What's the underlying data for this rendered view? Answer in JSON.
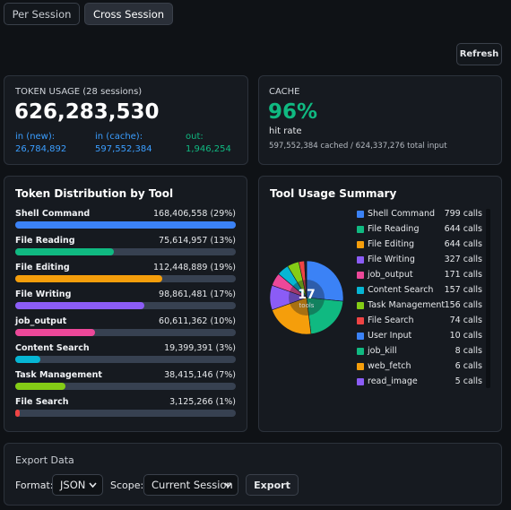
{
  "tabs": [
    "Per Session",
    "Cross Session"
  ],
  "refresh": "Refresh",
  "token_usage": {
    "label": "TOKEN USAGE (28 sessions)",
    "total": "626,283,530",
    "stats": [
      {
        "label": "in (new):",
        "value": "26,784,892"
      },
      {
        "label": "in (cache):",
        "value": "597,552,384"
      },
      {
        "label": "out:",
        "value": "1,946,254"
      }
    ]
  },
  "cache": {
    "label": "CACHE",
    "value": "96%",
    "sublabel": "hit rate",
    "detail": "597,552,384 cached / 624,337,276 total input"
  },
  "token_distribution": {
    "title": "Token Distribution by Tool",
    "rows": [
      {
        "name": "Shell Command",
        "tokens": 168406558,
        "label": "168,406,558 (29%)",
        "color": "#3b82f6"
      },
      {
        "name": "File Reading",
        "tokens": 75614957,
        "label": "75,614,957 (13%)",
        "color": "#10b981"
      },
      {
        "name": "File Editing",
        "tokens": 112448889,
        "label": "112,448,889 (19%)",
        "color": "#f59e0b"
      },
      {
        "name": "File Writing",
        "tokens": 98861481,
        "label": "98,861,481 (17%)",
        "color": "#8b5cf6"
      },
      {
        "name": "job_output",
        "tokens": 60611362,
        "label": "60,611,362 (10%)",
        "color": "#ec4899"
      },
      {
        "name": "Content Search",
        "tokens": 19399391,
        "label": "19,399,391 (3%)",
        "color": "#06b6d4"
      },
      {
        "name": "Task Management",
        "tokens": 38415146,
        "label": "38,415,146 (7%)",
        "color": "#84cc16"
      },
      {
        "name": "File Search",
        "tokens": 3125266,
        "label": "3,125,266 (1%)",
        "color": "#ef4444"
      }
    ]
  },
  "tool_usage": {
    "title": "Tool Usage Summary",
    "center_value": "17",
    "center_label": "tools",
    "tools": [
      {
        "name": "Shell Command",
        "calls": 799,
        "label": "799 calls",
        "color": "#3b82f6"
      },
      {
        "name": "File Reading",
        "calls": 644,
        "label": "644 calls",
        "color": "#10b981"
      },
      {
        "name": "File Editing",
        "calls": 644,
        "label": "644 calls",
        "color": "#f59e0b"
      },
      {
        "name": "File Writing",
        "calls": 327,
        "label": "327 calls",
        "color": "#8b5cf6"
      },
      {
        "name": "job_output",
        "calls": 171,
        "label": "171 calls",
        "color": "#ec4899"
      },
      {
        "name": "Content Search",
        "calls": 157,
        "label": "157 calls",
        "color": "#06b6d4"
      },
      {
        "name": "Task Management",
        "calls": 156,
        "label": "156 calls",
        "color": "#84cc16"
      },
      {
        "name": "File Search",
        "calls": 74,
        "label": "74 calls",
        "color": "#ef4444"
      },
      {
        "name": "User Input",
        "calls": 10,
        "label": "10 calls",
        "color": "#3b82f6"
      },
      {
        "name": "job_kill",
        "calls": 8,
        "label": "8 calls",
        "color": "#10b981"
      },
      {
        "name": "web_fetch",
        "calls": 6,
        "label": "6 calls",
        "color": "#f59e0b"
      },
      {
        "name": "read_image",
        "calls": 5,
        "label": "5 calls",
        "color": "#8b5cf6"
      }
    ]
  },
  "export": {
    "title": "Export Data",
    "format_label": "Format:",
    "format_value": "JSON",
    "scope_label": "Scope:",
    "scope_value": "Current Session",
    "button": "Export"
  }
}
